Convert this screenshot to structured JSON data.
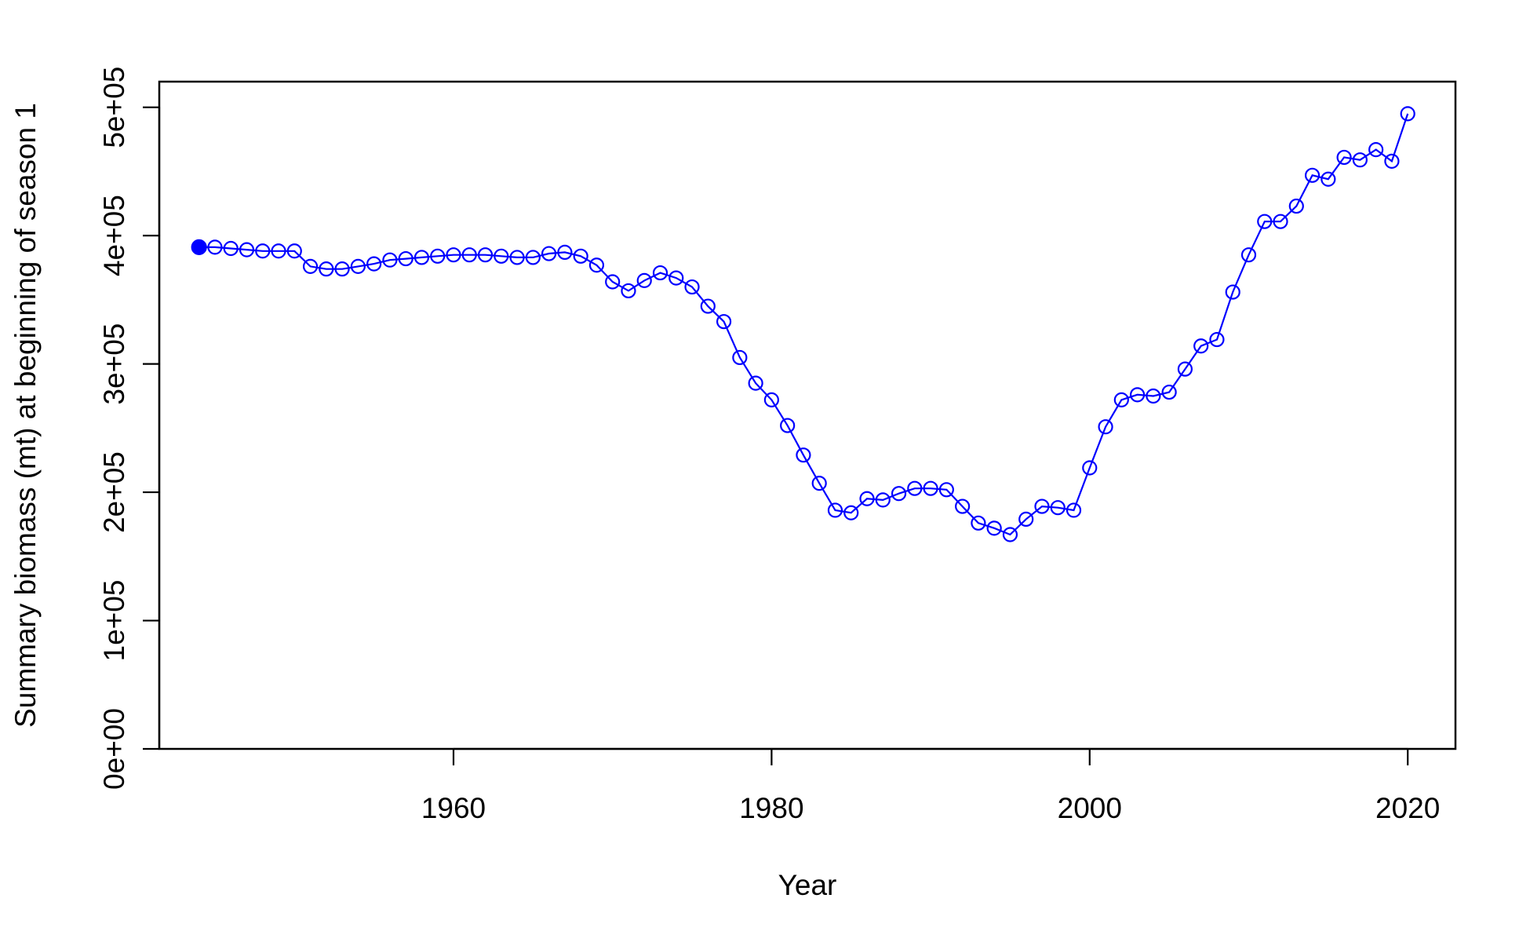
{
  "chart_data": {
    "type": "line",
    "xlabel": "Year",
    "ylabel": "Summary biomass (mt) at beginning of season 1",
    "xlim": [
      1941.5,
      2023
    ],
    "ylim": [
      0,
      520000
    ],
    "x_ticks": [
      1960,
      1980,
      2000,
      2020
    ],
    "x_tick_labels": [
      "1960",
      "1980",
      "2000",
      "2020"
    ],
    "y_ticks": [
      0,
      100000,
      200000,
      300000,
      400000,
      500000
    ],
    "y_tick_labels": [
      "0e+00",
      "1e+05",
      "2e+05",
      "3e+05",
      "4e+05",
      "5e+05"
    ],
    "grid": false,
    "color": "#0000ff",
    "series": [
      {
        "x": [
          1944,
          1945,
          1946,
          1947,
          1948,
          1949,
          1950,
          1951,
          1952,
          1953,
          1954,
          1955,
          1956,
          1957,
          1958,
          1959,
          1960,
          1961,
          1962,
          1963,
          1964,
          1965,
          1966,
          1967,
          1968,
          1969,
          1970,
          1971,
          1972,
          1973,
          1974,
          1975,
          1976,
          1977,
          1978,
          1979,
          1980,
          1981,
          1982,
          1983,
          1984,
          1985,
          1986,
          1987,
          1988,
          1989,
          1990,
          1991,
          1992,
          1993,
          1994,
          1995,
          1996,
          1997,
          1998,
          1999,
          2000,
          2001,
          2002,
          2003,
          2004,
          2005,
          2006,
          2007,
          2008,
          2009,
          2010,
          2011,
          2012,
          2013,
          2014,
          2015,
          2016,
          2017,
          2018,
          2019,
          2020
        ],
        "y": [
          391000,
          391000,
          390000,
          389000,
          388000,
          388000,
          388000,
          376000,
          374000,
          374000,
          376000,
          378000,
          381000,
          382000,
          383000,
          384000,
          385000,
          385000,
          385000,
          384000,
          383000,
          383000,
          386000,
          387000,
          384000,
          377000,
          364000,
          357000,
          365000,
          371000,
          367000,
          360000,
          345000,
          333000,
          305000,
          285000,
          272000,
          252000,
          229000,
          207000,
          186000,
          184000,
          195000,
          194000,
          199000,
          203000,
          203000,
          202000,
          189000,
          176000,
          172000,
          167000,
          179000,
          189000,
          188000,
          186000,
          219000,
          251000,
          272000,
          276000,
          275000,
          278000,
          296000,
          314000,
          319000,
          356000,
          385000,
          411000,
          411000,
          423000,
          447000,
          444000,
          461000,
          459000,
          467000,
          458000,
          495000
        ],
        "first_point_filled": true
      }
    ]
  }
}
